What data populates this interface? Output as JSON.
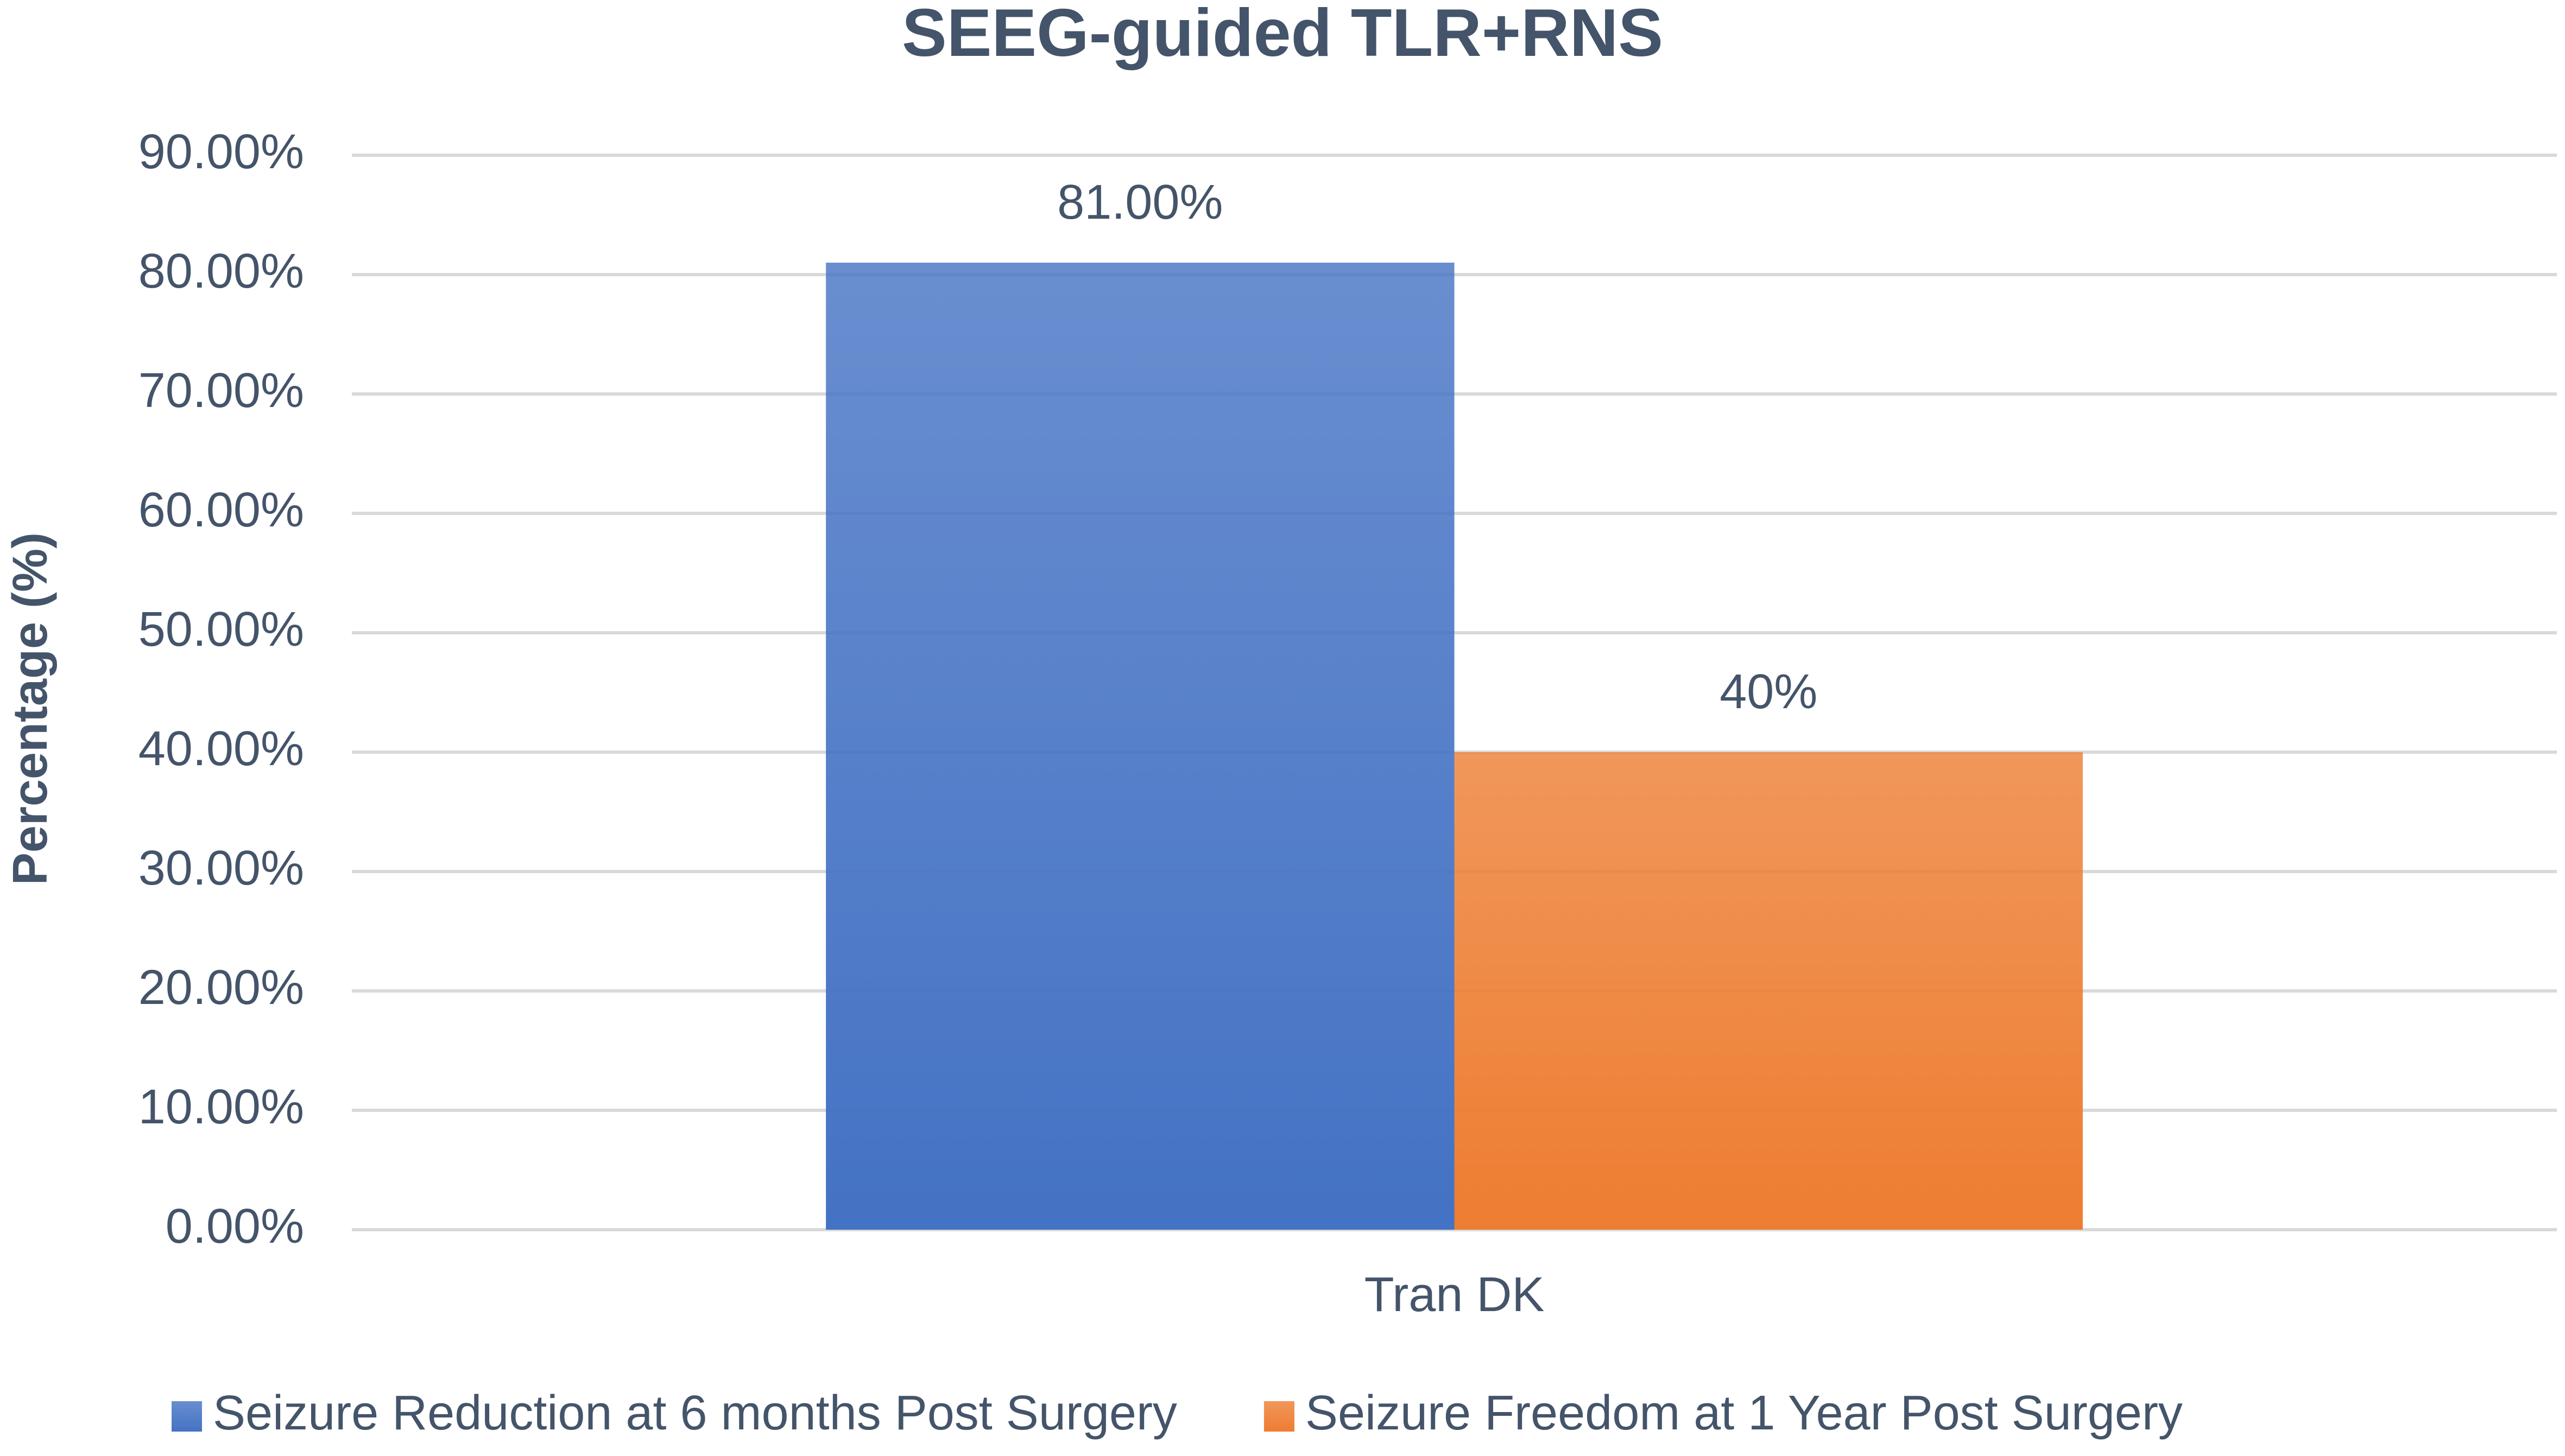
{
  "chart_data": {
    "type": "bar",
    "title": "SEEG-guided TLR+RNS",
    "y_label": "Percentage (%)",
    "categories": [
      "Tran DK"
    ],
    "series": [
      {
        "name": "Seizure Reduction at 6 months Post Surgery",
        "color": "#4472c4",
        "values": [
          81
        ],
        "value_labels": [
          "81.00%"
        ]
      },
      {
        "name": "Seizure Freedom at 1 Year Post Surgery",
        "color": "#ed7d31",
        "values": [
          40
        ],
        "value_labels": [
          "40%"
        ]
      }
    ],
    "ylim": [
      0,
      90
    ],
    "yticks": [
      {
        "value": 0,
        "label": "0.00%"
      },
      {
        "value": 10,
        "label": "10.00%"
      },
      {
        "value": 20,
        "label": "20.00%"
      },
      {
        "value": 30,
        "label": "30.00%"
      },
      {
        "value": 40,
        "label": "40.00%"
      },
      {
        "value": 50,
        "label": "50.00%"
      },
      {
        "value": 60,
        "label": "60.00%"
      },
      {
        "value": 70,
        "label": "70.00%"
      },
      {
        "value": 80,
        "label": "80.00%"
      },
      {
        "value": 90,
        "label": "90.00%"
      }
    ],
    "grid": true,
    "legend": "bottom"
  }
}
